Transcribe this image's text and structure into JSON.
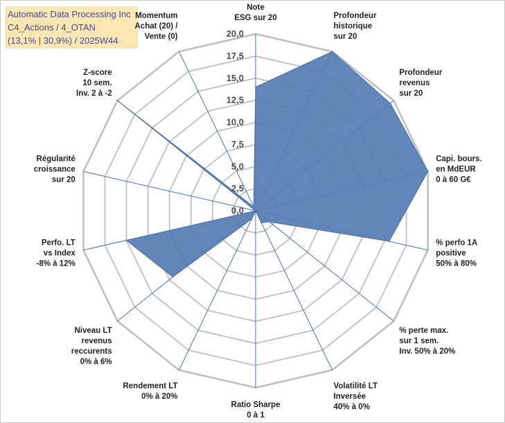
{
  "chart_data": {
    "type": "radar",
    "title_lines": [
      "Automatic Data Processing Inc",
      "C4_Actions / 4_OTAN",
      "(13,1% | 30,9%) / 2025W44"
    ],
    "rmin": 0,
    "rmax": 20,
    "tick_labels": [
      "0,0",
      "2,5",
      "5,0",
      "7,5",
      "10,0",
      "12,5",
      "15,0",
      "17,5",
      "20,0"
    ],
    "axes": [
      {
        "label": [
          "Note",
          "ESG sur 20"
        ],
        "value": 14.0
      },
      {
        "label": [
          "Profondeur",
          "historique",
          "sur 20"
        ],
        "value": 20.0
      },
      {
        "label": [
          "Profondeur",
          "revenus",
          "sur 20"
        ],
        "value": 19.5
      },
      {
        "label": [
          "Capi. bours.",
          "en MdEUR",
          "0 à 60 G€"
        ],
        "value": 20.0
      },
      {
        "label": [
          "% perfo 1A",
          "positive",
          "50% à 80%"
        ],
        "value": 15.5
      },
      {
        "label": [
          "% perte max.",
          "sur 1 sem.",
          "Inv. 50% à 20%"
        ],
        "value": 2.0
      },
      {
        "label": [
          "Volatilité LT",
          "Inversée",
          "40% à 0%"
        ],
        "value": 1.5
      },
      {
        "label": [
          "Ratio Sharpe",
          "0 à 1"
        ],
        "value": 0.0
      },
      {
        "label": [
          "Rendement LT",
          "0% à 20%"
        ],
        "value": 1.0
      },
      {
        "label": [
          "Niveau LT",
          "revenus",
          "reccurents",
          "0% à 6%"
        ],
        "value": 12.0
      },
      {
        "label": [
          "Perfo. LT",
          "vs Index",
          "-8% à 12%"
        ],
        "value": 15.0
      },
      {
        "label": [
          "Régularité",
          "croissance",
          "sur 20"
        ],
        "value": 0.0
      },
      {
        "label": [
          "Z-score",
          "10 sem.",
          "Inv. 2 à -2"
        ],
        "value": 20.0
      },
      {
        "label": [
          "Momentum",
          "Achat (20) /",
          "Vente (0)"
        ],
        "value": 0.5
      }
    ],
    "series": [
      {
        "name": "Automatic Data Processing Inc",
        "color": "#5b7fb4"
      }
    ],
    "colors": {
      "fill": "#5b7fb4",
      "grid": "#bfbfbf",
      "spoke": "#4472c4"
    }
  }
}
